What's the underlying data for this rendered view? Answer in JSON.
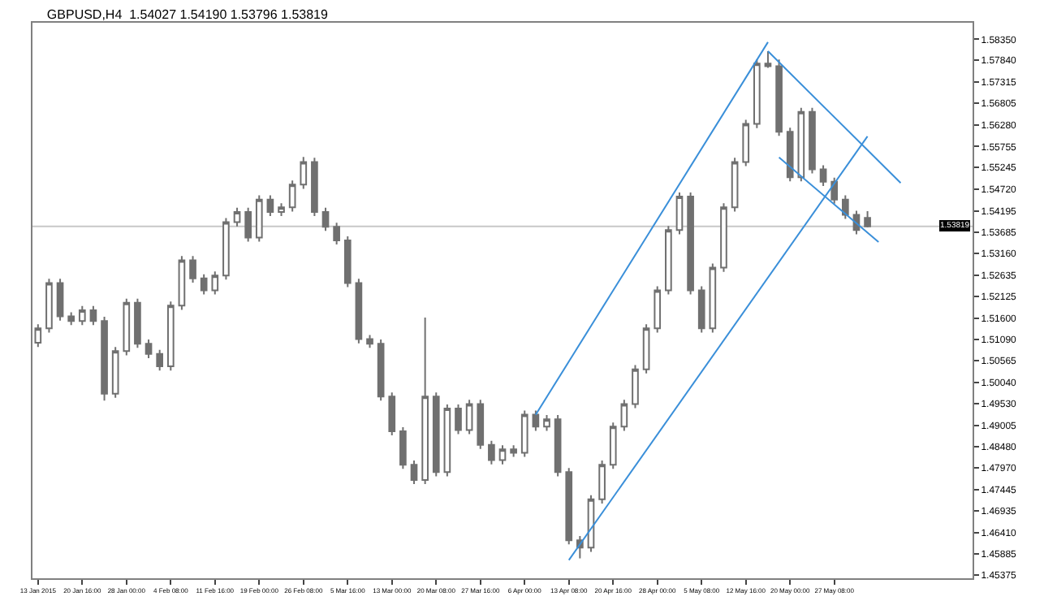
{
  "chart_data": {
    "type": "candlestick",
    "title": "GBPUSD,H4  1.54027 1.54190 1.53796 1.53819",
    "categories": [
      "13 Jan 2015",
      null,
      null,
      null,
      "20 Jan 16:00",
      null,
      null,
      null,
      "28 Jan 00:00",
      null,
      null,
      null,
      "4 Feb 08:00",
      null,
      null,
      null,
      "11 Feb 16:00",
      null,
      null,
      null,
      "19 Feb 00:00",
      null,
      null,
      null,
      "26 Feb 08:00",
      null,
      null,
      null,
      "5 Mar 16:00",
      null,
      null,
      null,
      "13 Mar 00:00",
      null,
      null,
      null,
      "20 Mar 08:00",
      null,
      null,
      null,
      "27 Mar 16:00",
      null,
      null,
      null,
      "6 Apr 00:00",
      null,
      null,
      null,
      "13 Apr 08:00",
      null,
      null,
      null,
      "20 Apr 16:00",
      null,
      null,
      null,
      "28 Apr 00:00",
      null,
      null,
      null,
      "5 May 08:00",
      null,
      null,
      null,
      "12 May 16:00",
      null,
      null,
      null,
      "20 May 00:00",
      null,
      null,
      null,
      "27 May 08:00",
      null,
      null,
      null,
      null,
      null,
      null,
      null,
      null,
      null,
      null,
      null,
      null
    ],
    "color": "#707070",
    "ohlc": [
      [
        1.51,
        1.5145,
        1.509,
        1.5135
      ],
      [
        1.5135,
        1.5255,
        1.5125,
        1.5245
      ],
      [
        1.5245,
        1.5255,
        1.5154,
        1.5164
      ],
      [
        1.5164,
        1.5174,
        1.5143,
        1.5153
      ],
      [
        1.5153,
        1.5189,
        1.5143,
        1.5179
      ],
      [
        1.5179,
        1.5189,
        1.5143,
        1.5153
      ],
      [
        1.5153,
        1.5163,
        1.496,
        1.4977
      ],
      [
        1.4977,
        1.509,
        1.4967,
        1.508
      ],
      [
        1.508,
        1.5207,
        1.507,
        1.5197
      ],
      [
        1.5197,
        1.5207,
        1.5088,
        1.5098
      ],
      [
        1.5098,
        1.5108,
        1.5063,
        1.5073
      ],
      [
        1.5073,
        1.5083,
        1.5033,
        1.5043
      ],
      [
        1.5043,
        1.52,
        1.5033,
        1.519
      ],
      [
        1.519,
        1.531,
        1.518,
        1.53
      ],
      [
        1.53,
        1.531,
        1.5246,
        1.5256
      ],
      [
        1.5256,
        1.5266,
        1.5217,
        1.5227
      ],
      [
        1.5227,
        1.5273,
        1.5217,
        1.5263
      ],
      [
        1.5263,
        1.5402,
        1.5253,
        1.5392
      ],
      [
        1.5392,
        1.5427,
        1.5382,
        1.5417
      ],
      [
        1.5417,
        1.5427,
        1.5345,
        1.5355
      ],
      [
        1.5355,
        1.5457,
        1.5345,
        1.5447
      ],
      [
        1.5447,
        1.5457,
        1.5407,
        1.5417
      ],
      [
        1.5417,
        1.5438,
        1.5407,
        1.5428
      ],
      [
        1.5428,
        1.5493,
        1.5418,
        1.5483
      ],
      [
        1.5483,
        1.555,
        1.5473,
        1.5538
      ],
      [
        1.5538,
        1.5548,
        1.5407,
        1.5417
      ],
      [
        1.5417,
        1.5427,
        1.5371,
        1.5381
      ],
      [
        1.5381,
        1.5391,
        1.5338,
        1.5348
      ],
      [
        1.5348,
        1.5358,
        1.5235,
        1.5245
      ],
      [
        1.5245,
        1.5255,
        1.5099,
        1.5109
      ],
      [
        1.5109,
        1.5119,
        1.5088,
        1.5098
      ],
      [
        1.5098,
        1.5108,
        1.496,
        1.497
      ],
      [
        1.497,
        1.498,
        1.4876,
        1.4886
      ],
      [
        1.4886,
        1.4896,
        1.4795,
        1.4805
      ],
      [
        1.4805,
        1.4815,
        1.4758,
        1.4768
      ],
      [
        1.4768,
        1.5161,
        1.4758,
        1.497
      ],
      [
        1.497,
        1.498,
        1.4777,
        1.4787
      ],
      [
        1.4787,
        1.4951,
        1.4777,
        1.4941
      ],
      [
        1.4941,
        1.4951,
        1.4879,
        1.4889
      ],
      [
        1.4889,
        1.4962,
        1.4879,
        1.4952
      ],
      [
        1.4952,
        1.4962,
        1.4843,
        1.4853
      ],
      [
        1.4853,
        1.4863,
        1.4806,
        1.4816
      ],
      [
        1.4816,
        1.4852,
        1.4806,
        1.4842
      ],
      [
        1.4842,
        1.4852,
        1.4824,
        1.4834
      ],
      [
        1.4834,
        1.4936,
        1.4824,
        1.4926
      ],
      [
        1.4926,
        1.4936,
        1.4887,
        1.4897
      ],
      [
        1.4897,
        1.4925,
        1.4887,
        1.4915
      ],
      [
        1.4915,
        1.4925,
        1.4777,
        1.4787
      ],
      [
        1.4787,
        1.4797,
        1.4612,
        1.4622
      ],
      [
        1.4622,
        1.4632,
        1.4578,
        1.4604
      ],
      [
        1.4604,
        1.4731,
        1.4594,
        1.4721
      ],
      [
        1.4721,
        1.4815,
        1.4711,
        1.4805
      ],
      [
        1.4805,
        1.4907,
        1.4795,
        1.4897
      ],
      [
        1.4897,
        1.4962,
        1.4887,
        1.4952
      ],
      [
        1.4952,
        1.5046,
        1.4942,
        1.5036
      ],
      [
        1.5036,
        1.5145,
        1.5026,
        1.5135
      ],
      [
        1.5135,
        1.5237,
        1.5125,
        1.5227
      ],
      [
        1.5227,
        1.5383,
        1.5217,
        1.5373
      ],
      [
        1.5373,
        1.5464,
        1.5363,
        1.5454
      ],
      [
        1.5454,
        1.5464,
        1.5217,
        1.5227
      ],
      [
        1.5227,
        1.5237,
        1.5125,
        1.5135
      ],
      [
        1.5135,
        1.5292,
        1.5125,
        1.5282
      ],
      [
        1.5282,
        1.5438,
        1.5272,
        1.5428
      ],
      [
        1.5428,
        1.5548,
        1.5418,
        1.5538
      ],
      [
        1.5538,
        1.564,
        1.5528,
        1.563
      ],
      [
        1.563,
        1.5786,
        1.562,
        1.5776
      ],
      [
        1.5776,
        1.5806,
        1.5766,
        1.577
      ],
      [
        1.577,
        1.5786,
        1.5601,
        1.5611
      ],
      [
        1.5611,
        1.5621,
        1.5491,
        1.5501
      ],
      [
        1.5501,
        1.5669,
        1.5491,
        1.5659
      ],
      [
        1.5659,
        1.5669,
        1.551,
        1.552
      ],
      [
        1.552,
        1.553,
        1.548,
        1.549
      ],
      [
        1.549,
        1.55,
        1.5437,
        1.5447
      ],
      [
        1.5447,
        1.5457,
        1.54,
        1.541
      ],
      [
        1.541,
        1.542,
        1.5363,
        1.5373
      ],
      [
        1.54027,
        1.5419,
        1.53796,
        1.53819
      ],
      null,
      null,
      null,
      null,
      null,
      null,
      null,
      null,
      null
    ],
    "series": [
      {
        "type": "line",
        "color": "#3a8fd9",
        "values": [
          null,
          null,
          null,
          null,
          null,
          null,
          null,
          null,
          null,
          null,
          null,
          null,
          null,
          null,
          null,
          null,
          null,
          null,
          null,
          null,
          null,
          null,
          null,
          null,
          null,
          null,
          null,
          null,
          null,
          null,
          null,
          null,
          null,
          null,
          null,
          null,
          null,
          null,
          null,
          null,
          null,
          null,
          null,
          null,
          null,
          1.4926,
          null,
          null,
          null,
          null,
          null,
          null,
          null,
          null,
          null,
          null,
          null,
          null,
          null,
          null,
          null,
          null,
          null,
          null,
          null,
          null,
          1.5828,
          null,
          null,
          null,
          null,
          null,
          null,
          null,
          null,
          null,
          null,
          null,
          null,
          null,
          null,
          null,
          null,
          null,
          null
        ]
      },
      {
        "type": "line",
        "color": "#3a8fd9",
        "values": [
          null,
          null,
          null,
          null,
          null,
          null,
          null,
          null,
          null,
          null,
          null,
          null,
          null,
          null,
          null,
          null,
          null,
          null,
          null,
          null,
          null,
          null,
          null,
          null,
          null,
          null,
          null,
          null,
          null,
          null,
          null,
          null,
          null,
          null,
          null,
          null,
          null,
          null,
          null,
          null,
          null,
          null,
          null,
          null,
          null,
          null,
          null,
          null,
          1.4574,
          null,
          null,
          null,
          null,
          null,
          null,
          null,
          null,
          null,
          null,
          null,
          null,
          null,
          null,
          null,
          null,
          null,
          null,
          null,
          null,
          null,
          null,
          null,
          null,
          null,
          null,
          1.56,
          null,
          null,
          null,
          null,
          null,
          null,
          null,
          null,
          null
        ]
      },
      {
        "type": "line",
        "color": "#3a8fd9",
        "values": [
          null,
          null,
          null,
          null,
          null,
          null,
          null,
          null,
          null,
          null,
          null,
          null,
          null,
          null,
          null,
          null,
          null,
          null,
          null,
          null,
          null,
          null,
          null,
          null,
          null,
          null,
          null,
          null,
          null,
          null,
          null,
          null,
          null,
          null,
          null,
          null,
          null,
          null,
          null,
          null,
          null,
          null,
          null,
          null,
          null,
          null,
          null,
          null,
          null,
          null,
          null,
          null,
          null,
          null,
          null,
          null,
          null,
          null,
          null,
          null,
          null,
          null,
          null,
          null,
          null,
          null,
          1.5806,
          null,
          null,
          null,
          null,
          null,
          null,
          null,
          null,
          null,
          null,
          null,
          1.5487,
          null,
          null,
          null,
          null,
          null,
          null
        ]
      },
      {
        "type": "line",
        "color": "#3a8fd9",
        "values": [
          null,
          null,
          null,
          null,
          null,
          null,
          null,
          null,
          null,
          null,
          null,
          null,
          null,
          null,
          null,
          null,
          null,
          null,
          null,
          null,
          null,
          null,
          null,
          null,
          null,
          null,
          null,
          null,
          null,
          null,
          null,
          null,
          null,
          null,
          null,
          null,
          null,
          null,
          null,
          null,
          null,
          null,
          null,
          null,
          null,
          null,
          null,
          null,
          null,
          null,
          null,
          null,
          null,
          null,
          null,
          null,
          null,
          null,
          null,
          null,
          null,
          null,
          null,
          null,
          null,
          null,
          null,
          1.5549,
          null,
          null,
          null,
          null,
          null,
          null,
          null,
          null,
          1.5344,
          null,
          null,
          null,
          null,
          null,
          null,
          null,
          null
        ]
      }
    ],
    "ylim": [
      1.453,
      1.5875
    ],
    "yticks": [
      {
        "value": 1.5835,
        "label": "1.58350"
      },
      {
        "value": 1.5784,
        "label": "1.57840"
      },
      {
        "value": 1.57315,
        "label": "1.57315"
      },
      {
        "value": 1.56805,
        "label": "1.56805"
      },
      {
        "value": 1.5628,
        "label": "1.56280"
      },
      {
        "value": 1.55755,
        "label": "1.55755"
      },
      {
        "value": 1.55245,
        "label": "1.55245"
      },
      {
        "value": 1.5472,
        "label": "1.54720"
      },
      {
        "value": 1.54195,
        "label": "1.54195"
      },
      {
        "value": 1.53685,
        "label": "1.53685"
      },
      {
        "value": 1.5316,
        "label": "1.53160"
      },
      {
        "value": 1.52635,
        "label": "1.52635"
      },
      {
        "value": 1.52125,
        "label": "1.52125"
      },
      {
        "value": 1.516,
        "label": "1.51600"
      },
      {
        "value": 1.5109,
        "label": "1.51090"
      },
      {
        "value": 1.50565,
        "label": "1.50565"
      },
      {
        "value": 1.5004,
        "label": "1.50040"
      },
      {
        "value": 1.4953,
        "label": "1.49530"
      },
      {
        "value": 1.49005,
        "label": "1.49005"
      },
      {
        "value": 1.4848,
        "label": "1.48480"
      },
      {
        "value": 1.4797,
        "label": "1.47970"
      },
      {
        "value": 1.47445,
        "label": "1.47445"
      },
      {
        "value": 1.46935,
        "label": "1.46935"
      },
      {
        "value": 1.4641,
        "label": "1.46410"
      },
      {
        "value": 1.45885,
        "label": "1.45885"
      },
      {
        "value": 1.45375,
        "label": "1.45375"
      }
    ],
    "ref_lines": [
      {
        "axis": "y",
        "value": 1.53819,
        "label": "1.53819",
        "color": "#c8c8c8"
      }
    ],
    "grid": false
  }
}
